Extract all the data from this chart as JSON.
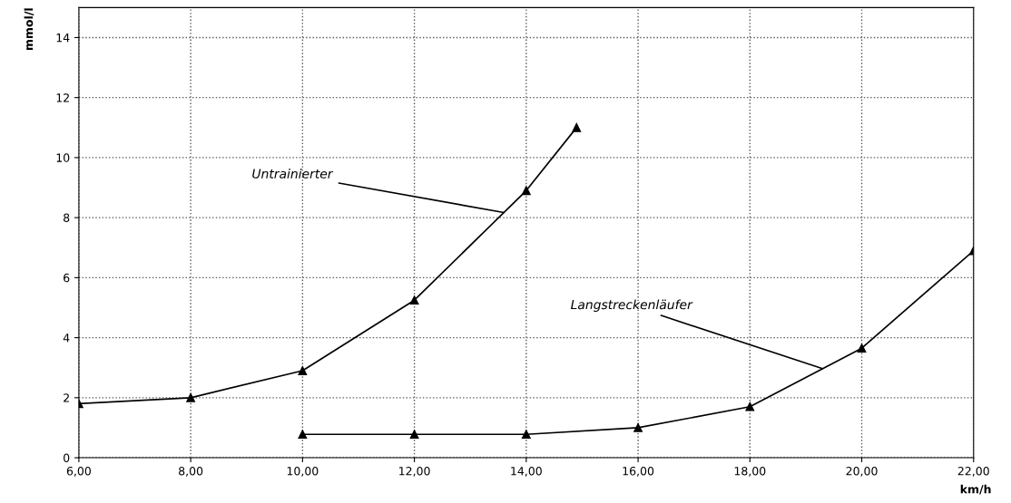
{
  "chart_data": {
    "type": "line",
    "xlabel": "km/h",
    "ylabel": "mmol/l",
    "xlim": [
      6,
      22
    ],
    "ylim": [
      0,
      15
    ],
    "xticks": [
      {
        "value": 6,
        "label": "6,00"
      },
      {
        "value": 8,
        "label": "8,00"
      },
      {
        "value": 10,
        "label": "10,00"
      },
      {
        "value": 12,
        "label": "12,00"
      },
      {
        "value": 14,
        "label": "14,00"
      },
      {
        "value": 16,
        "label": "16,00"
      },
      {
        "value": 18,
        "label": "18,00"
      },
      {
        "value": 20,
        "label": "20,00"
      },
      {
        "value": 22,
        "label": "22,00"
      }
    ],
    "yticks": [
      0,
      2,
      4,
      6,
      8,
      10,
      12,
      14
    ],
    "grid": true,
    "marker": "triangle",
    "line_style": "solid",
    "series": [
      {
        "color": "#000000",
        "x": [
          6,
          8,
          10,
          12,
          14,
          14.9
        ],
        "values": [
          1.8,
          2.0,
          2.9,
          5.25,
          8.9,
          11.0
        ]
      },
      {
        "color": "#000000",
        "x": [
          10,
          12,
          14,
          16,
          18,
          20,
          22
        ],
        "values": [
          0.78,
          0.78,
          0.78,
          1.0,
          1.7,
          3.65,
          6.9
        ]
      }
    ],
    "annotations": [
      {
        "text": "Untrainierter",
        "x": 13.6,
        "y": 8.17
      },
      {
        "text": "Langstreckenläufer",
        "x": 19.3,
        "y": 2.97
      }
    ]
  }
}
